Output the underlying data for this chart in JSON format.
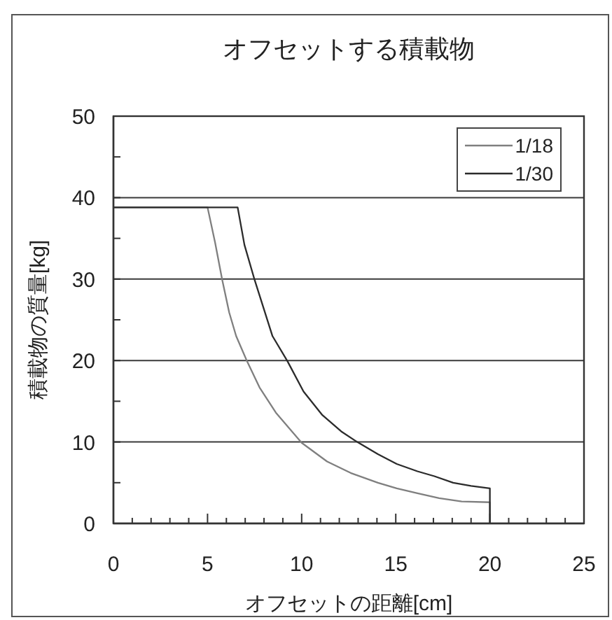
{
  "chart_data": {
    "type": "line",
    "title": "オフセットする積載物",
    "xlabel": "オフセットの距離[cm]",
    "ylabel": "積載物の質量[kg]",
    "xlim": [
      0,
      25
    ],
    "xticks": [
      0,
      {
        "value": 1,
        "label": null
      },
      {
        "value": 2,
        "label": null
      },
      {
        "value": 3,
        "label": null
      },
      {
        "value": 4,
        "label": null
      },
      5,
      {
        "value": 6,
        "label": null
      },
      {
        "value": 7,
        "label": null
      },
      {
        "value": 8,
        "label": null
      },
      {
        "value": 9,
        "label": null
      },
      10,
      {
        "value": 11,
        "label": null
      },
      {
        "value": 12,
        "label": null
      },
      {
        "value": 13,
        "label": null
      },
      {
        "value": 14,
        "label": null
      },
      15,
      {
        "value": 16,
        "label": null
      },
      {
        "value": 17,
        "label": null
      },
      {
        "value": 18,
        "label": null
      },
      {
        "value": 19,
        "label": null
      },
      20,
      {
        "value": 21,
        "label": null
      },
      {
        "value": 22,
        "label": null
      },
      {
        "value": 23,
        "label": null
      },
      {
        "value": 24,
        "label": null
      },
      25
    ],
    "ylim": [
      0,
      50
    ],
    "yticks": [
      0,
      {
        "value": 5,
        "label": null
      },
      10,
      {
        "value": 15,
        "label": null
      },
      20,
      {
        "value": 25,
        "label": null
      },
      30,
      {
        "value": 35,
        "label": null
      },
      40,
      {
        "value": 45,
        "label": null
      },
      50
    ],
    "grid": "y",
    "legend": "top right",
    "marker": "none",
    "line_style": "solid",
    "series": [
      {
        "name": "1/18",
        "color": "#7f7f7f",
        "x": [
          0,
          5.0,
          5.4,
          5.78,
          6.15,
          6.52,
          7.1,
          7.76,
          8.63,
          10.0,
          11.35,
          12.6,
          14.05,
          15.05,
          16.15,
          17.3,
          18.5,
          20.0,
          20.0
        ],
        "values": [
          38.8,
          38.8,
          34.5,
          29.9,
          25.9,
          23.0,
          19.9,
          16.7,
          13.6,
          9.9,
          7.6,
          6.2,
          5.0,
          4.3,
          3.7,
          3.1,
          2.7,
          2.6,
          0
        ]
      },
      {
        "name": "1/30",
        "color": "#2b2b2b",
        "x": [
          0,
          6.6,
          6.96,
          7.5,
          8.45,
          9.25,
          10.1,
          11.1,
          12.1,
          12.95,
          14.05,
          15.05,
          16.15,
          17.05,
          18.05,
          19.0,
          20.0,
          20.0
        ],
        "values": [
          38.8,
          38.8,
          34.2,
          29.9,
          23.0,
          19.9,
          16.2,
          13.3,
          11.3,
          10.0,
          8.5,
          7.3,
          6.4,
          5.8,
          5.0,
          4.6,
          4.3,
          0
        ]
      }
    ]
  }
}
